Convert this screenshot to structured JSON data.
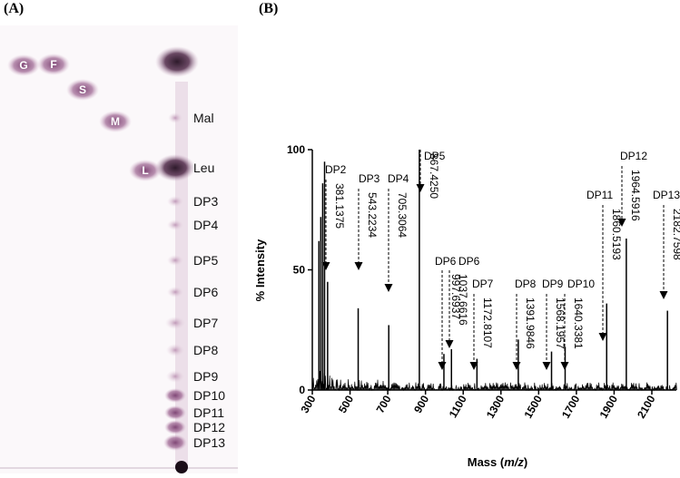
{
  "panels": {
    "a_label": "(A)",
    "b_label": "(B)"
  },
  "tlc": {
    "standards": [
      {
        "label": "G"
      },
      {
        "label": "F"
      },
      {
        "label": "S"
      },
      {
        "label": "M"
      },
      {
        "label": "L"
      }
    ],
    "ladder_labels": [
      "Mal",
      "Leu",
      "DP3",
      "DP4",
      "DP5",
      "DP6",
      "DP7",
      "DP8",
      "DP9",
      "DP10",
      "DP11",
      "DP12",
      "DP13"
    ],
    "colors": {
      "plate": "#fbf8fa",
      "spot": "#a06a95",
      "spot_dark": "#4a2a44"
    }
  },
  "chart_data": {
    "type": "line",
    "title": "",
    "xlabel": "Mass (m/z)",
    "xlabel_parts": [
      "Mass (",
      "m/z",
      ")"
    ],
    "ylabel": "% Intensity",
    "xlim": [
      300,
      2230
    ],
    "ylim": [
      0,
      100
    ],
    "xticks": [
      300,
      500,
      700,
      900,
      1100,
      1300,
      1500,
      1700,
      1900,
      2100
    ],
    "yticks": [
      0,
      50,
      100
    ],
    "peaks": [
      {
        "x": 335,
        "y": 62
      },
      {
        "x": 345,
        "y": 72
      },
      {
        "x": 355,
        "y": 86
      },
      {
        "x": 365,
        "y": 95
      },
      {
        "x": 381.1375,
        "y": 45
      },
      {
        "x": 543.2234,
        "y": 34
      },
      {
        "x": 705.3064,
        "y": 27
      },
      {
        "x": 867.425,
        "y": 100
      },
      {
        "x": 997.6937,
        "y": 15
      },
      {
        "x": 1037.6616,
        "y": 17
      },
      {
        "x": 1172.8107,
        "y": 13
      },
      {
        "x": 1391.9846,
        "y": 21
      },
      {
        "x": 1568.1957,
        "y": 16
      },
      {
        "x": 1640.3381,
        "y": 18
      },
      {
        "x": 1860.5193,
        "y": 36
      },
      {
        "x": 1964.5916,
        "y": 63
      },
      {
        "x": 2182.7598,
        "y": 33
      }
    ],
    "annotations": [
      {
        "label": "DP2",
        "mass": "381.1375",
        "x": 381.1375
      },
      {
        "label": "DP3",
        "mass": "543.2234",
        "x": 543.2234
      },
      {
        "label": "DP4",
        "mass": "705.3064",
        "x": 705.3064
      },
      {
        "label": "DP5",
        "mass": "867.4250",
        "x": 867.425
      },
      {
        "label": "DP6",
        "mass": "997.6937",
        "x": 997.6937
      },
      {
        "label": "DP6",
        "mass": "1037.6616",
        "x": 1037.6616
      },
      {
        "label": "DP7",
        "mass": "1172.8107",
        "x": 1172.8107
      },
      {
        "label": "DP8",
        "mass": "1391.9846",
        "x": 1391.9846
      },
      {
        "label": "DP9",
        "mass": "1568.1957",
        "x": 1568.1957
      },
      {
        "label": "DP10",
        "mass": "1640.3381",
        "x": 1640.3381
      },
      {
        "label": "DP11",
        "mass": "1860.5193",
        "x": 1860.5193
      },
      {
        "label": "DP12",
        "mass": "1964.5916",
        "x": 1964.5916
      },
      {
        "label": "DP13",
        "mass": "2182.7598",
        "x": 2182.7598
      }
    ]
  }
}
